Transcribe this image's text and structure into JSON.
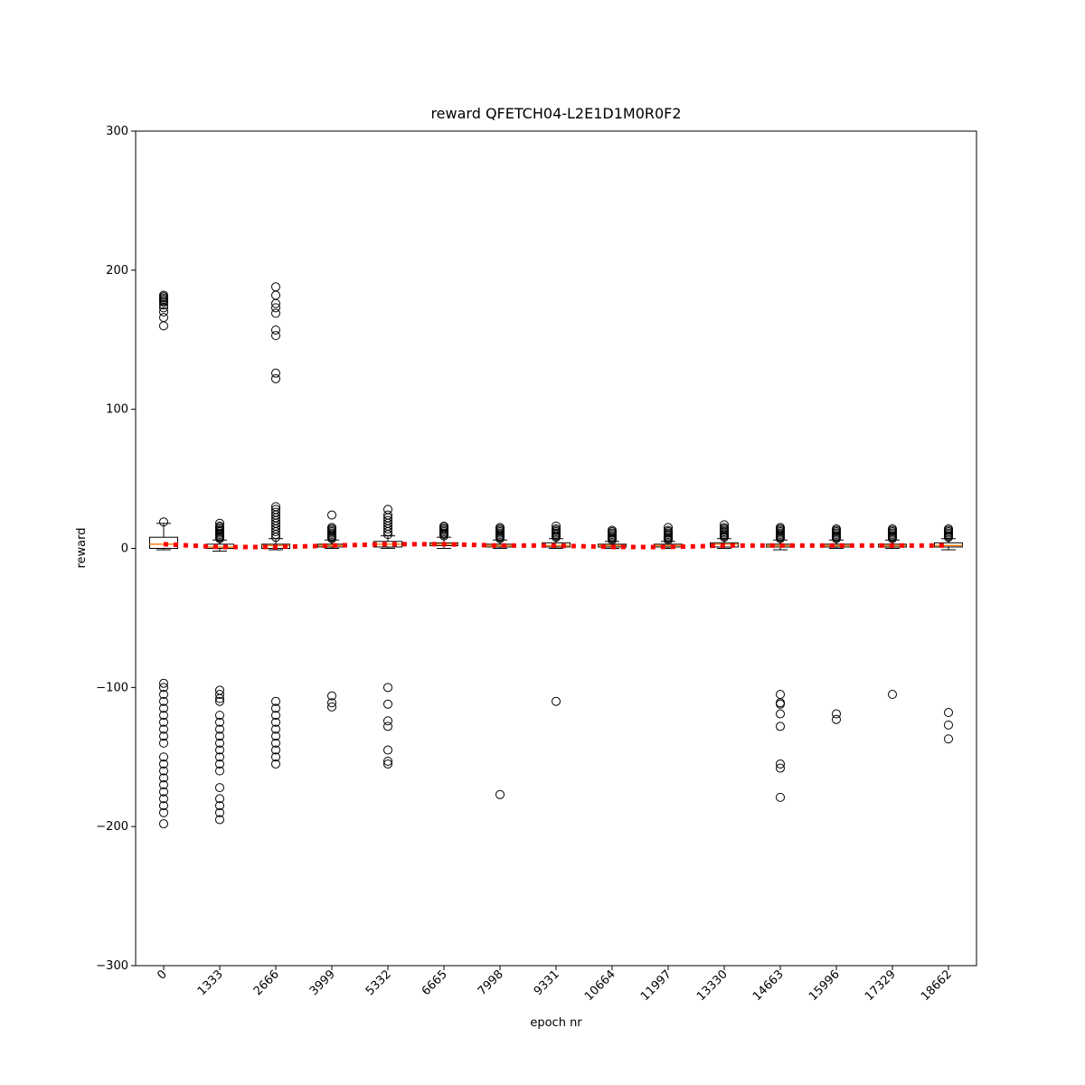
{
  "chart_data": {
    "type": "box",
    "title": "reward QFETCH04-L2E1D1M0R0F2",
    "x_label": "epoch nr",
    "y_label": "reward",
    "categories": [
      "0",
      "1333",
      "2666",
      "3999",
      "5332",
      "6665",
      "7998",
      "9331",
      "10664",
      "11997",
      "13330",
      "14663",
      "15996",
      "17329",
      "18662"
    ],
    "boxes": [
      {
        "whislo": -1,
        "q1": 0,
        "med": 3,
        "q3": 8,
        "whishi": 18,
        "fliers": [
          19,
          160,
          166,
          170,
          173,
          175,
          177,
          178,
          179,
          180,
          181,
          182,
          -97,
          -100,
          -105,
          -110,
          -115,
          -120,
          -125,
          -130,
          -135,
          -140,
          -150,
          -155,
          -160,
          -165,
          -170,
          -175,
          -180,
          -185,
          -190,
          -198
        ]
      },
      {
        "whislo": -2,
        "q1": 0,
        "med": 1,
        "q3": 3,
        "whishi": 6,
        "fliers": [
          7,
          8,
          9,
          10,
          11,
          12,
          13,
          14,
          15,
          16,
          18,
          -102,
          -105,
          -108,
          -110,
          -120,
          -125,
          -130,
          -135,
          -140,
          -145,
          -150,
          -155,
          -160,
          -172,
          -180,
          -185,
          -190,
          -195
        ]
      },
      {
        "whislo": -1,
        "q1": 0,
        "med": 2,
        "q3": 3,
        "whishi": 7,
        "fliers": [
          8,
          10,
          12,
          14,
          16,
          18,
          20,
          22,
          24,
          26,
          28,
          30,
          122,
          126,
          153,
          157,
          169,
          173,
          176,
          182,
          188,
          -110,
          -115,
          -120,
          -125,
          -130,
          -135,
          -140,
          -145,
          -150,
          -155
        ]
      },
      {
        "whislo": 0,
        "q1": 1,
        "med": 2,
        "q3": 3,
        "whishi": 6,
        "fliers": [
          7,
          8,
          9,
          10,
          11,
          12,
          13,
          14,
          15,
          24,
          -106,
          -111,
          -114
        ]
      },
      {
        "whislo": 0,
        "q1": 1,
        "med": 3,
        "q3": 5,
        "whishi": 9,
        "fliers": [
          10,
          12,
          14,
          16,
          18,
          20,
          22,
          24,
          28,
          -100,
          -112,
          -124,
          -128,
          -145,
          -153,
          -155
        ]
      },
      {
        "whislo": 0,
        "q1": 2,
        "med": 3,
        "q3": 4,
        "whishi": 8,
        "fliers": [
          9,
          10,
          11,
          12,
          13,
          14,
          15,
          16
        ]
      },
      {
        "whislo": 0,
        "q1": 1,
        "med": 2,
        "q3": 3,
        "whishi": 6,
        "fliers": [
          7,
          8,
          9,
          10,
          11,
          12,
          13,
          14,
          15,
          -177
        ]
      },
      {
        "whislo": 0,
        "q1": 1,
        "med": 2,
        "q3": 4,
        "whishi": 7,
        "fliers": [
          8,
          9,
          10,
          11,
          12,
          13,
          14,
          16,
          -110
        ]
      },
      {
        "whislo": 0,
        "q1": 1,
        "med": 2,
        "q3": 3,
        "whishi": 5,
        "fliers": [
          6,
          7,
          8,
          9,
          10,
          11,
          12,
          13
        ]
      },
      {
        "whislo": 0,
        "q1": 1,
        "med": 2,
        "q3": 3,
        "whishi": 5,
        "fliers": [
          6,
          7,
          8,
          9,
          10,
          11,
          12,
          13,
          15
        ]
      },
      {
        "whislo": 0,
        "q1": 1,
        "med": 3,
        "q3": 4,
        "whishi": 7,
        "fliers": [
          8,
          9,
          10,
          11,
          12,
          13,
          14,
          15,
          17
        ]
      },
      {
        "whislo": -1,
        "q1": 1,
        "med": 2,
        "q3": 3,
        "whishi": 6,
        "fliers": [
          7,
          8,
          9,
          10,
          11,
          12,
          13,
          14,
          15,
          -105,
          -111,
          -112,
          -119,
          -128,
          -155,
          -158,
          -179
        ]
      },
      {
        "whislo": 0,
        "q1": 1,
        "med": 2,
        "q3": 3,
        "whishi": 6,
        "fliers": [
          7,
          8,
          9,
          10,
          11,
          12,
          13,
          14,
          -119,
          -123
        ]
      },
      {
        "whislo": 0,
        "q1": 1,
        "med": 2,
        "q3": 3,
        "whishi": 6,
        "fliers": [
          7,
          8,
          9,
          10,
          11,
          12,
          13,
          14,
          -105
        ]
      },
      {
        "whislo": -1,
        "q1": 1,
        "med": 2,
        "q3": 4,
        "whishi": 7,
        "fliers": [
          8,
          9,
          10,
          11,
          12,
          13,
          14,
          -118,
          -127,
          -137
        ]
      }
    ],
    "means": [
      3,
      1,
      1,
      2,
      3,
      3,
      2,
      2,
      1,
      1,
      2,
      2,
      2,
      2,
      2
    ],
    "mean_color": "#ff0000",
    "median_color": "#ff7f0e",
    "box_color": "#000000",
    "ylim": [
      -300,
      300
    ],
    "yticks": [
      {
        "value": -300,
        "label": "−300"
      },
      {
        "value": -200,
        "label": "−200"
      },
      {
        "value": -100,
        "label": "−100"
      },
      0,
      100,
      200,
      300
    ],
    "grid": false
  }
}
